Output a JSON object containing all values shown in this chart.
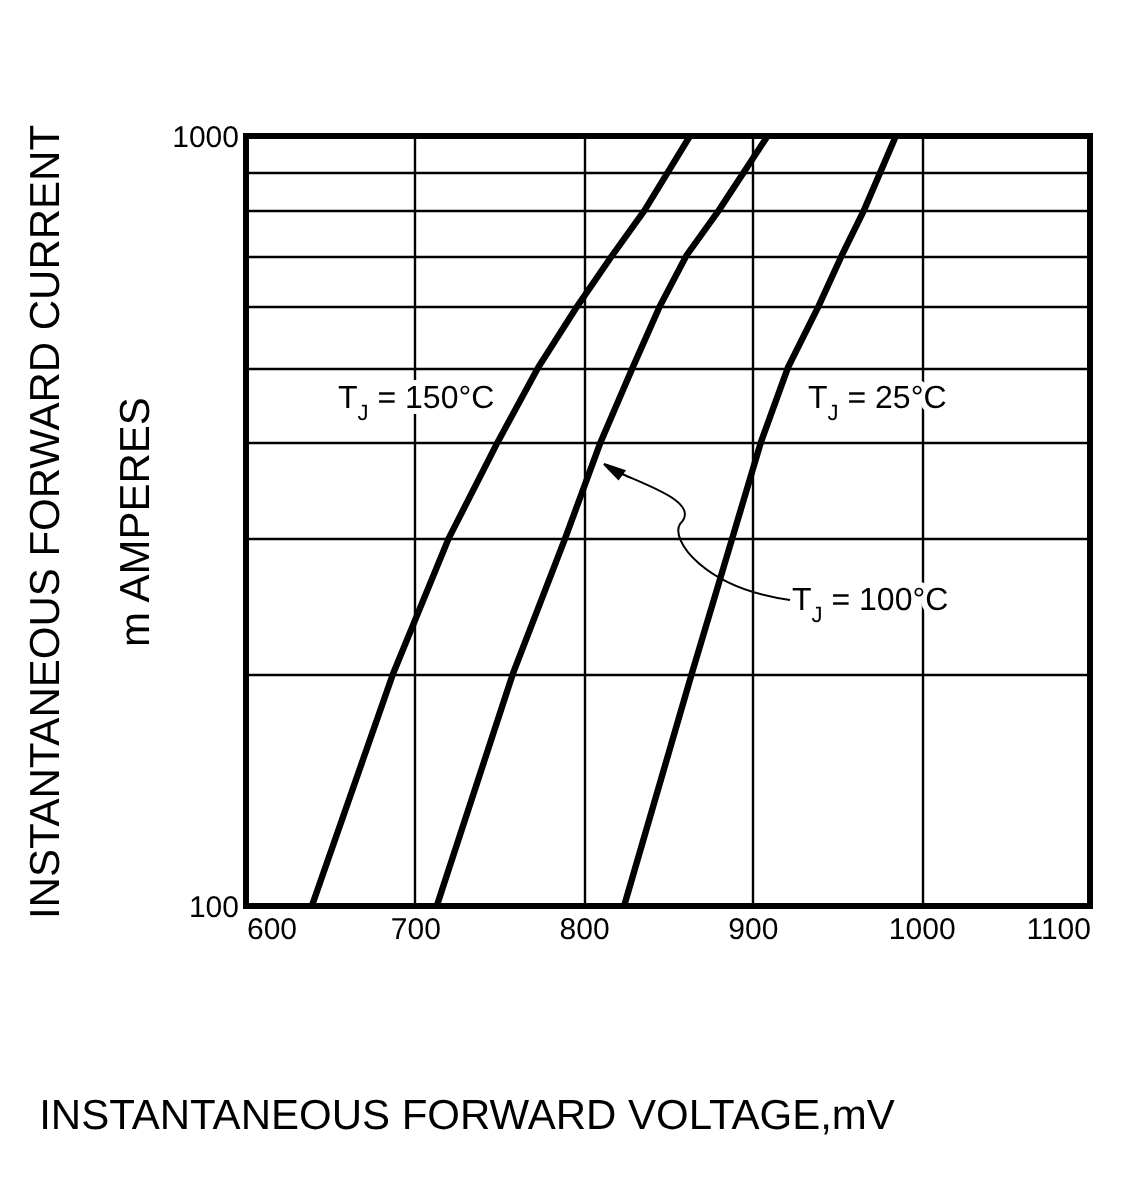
{
  "chart_data": {
    "type": "line",
    "xlabel": "INSTANTANEOUS FORWARD VOLTAGE,mV",
    "ylabel": "INSTANTANEOUS FORWARD CURRENT\nm AMPERES",
    "log": "y",
    "grid": true,
    "line_style": "solid",
    "xlim": [
      600,
      1100
    ],
    "xticks": [
      600,
      700,
      800,
      900,
      1000,
      1100
    ],
    "ylim": [
      100,
      1000
    ],
    "yticks": [
      100,
      {
        "value": 200,
        "label": null
      },
      {
        "value": 300,
        "label": null
      },
      {
        "value": 400,
        "label": null
      },
      {
        "value": 500,
        "label": null
      },
      {
        "value": 600,
        "label": null
      },
      {
        "value": 700,
        "label": null
      },
      {
        "value": 800,
        "label": null
      },
      {
        "value": 900,
        "label": null
      },
      1000
    ],
    "series": [
      {
        "color": "#000000",
        "x": [
          639,
          687,
          720,
          749,
          773,
          796,
          817,
          836,
          863
        ],
        "values": [
          100,
          200,
          300,
          400,
          500,
          600,
          700,
          800,
          1000
        ]
      },
      {
        "color": "#000000",
        "x": [
          713,
          758,
          789,
          810,
          829,
          845,
          861,
          880,
          909
        ],
        "values": [
          100,
          200,
          300,
          400,
          500,
          600,
          700,
          800,
          1000
        ]
      },
      {
        "color": "#000000",
        "x": [
          824,
          864,
          888,
          905,
          921,
          939,
          953,
          966,
          985
        ],
        "values": [
          100,
          200,
          300,
          400,
          500,
          600,
          700,
          800,
          1000
        ]
      }
    ],
    "annotations": [
      "T$_{J}$ = 150°C",
      "T$_{J}$ = 100°C",
      "T$_{J}$ = 25°C"
    ]
  }
}
